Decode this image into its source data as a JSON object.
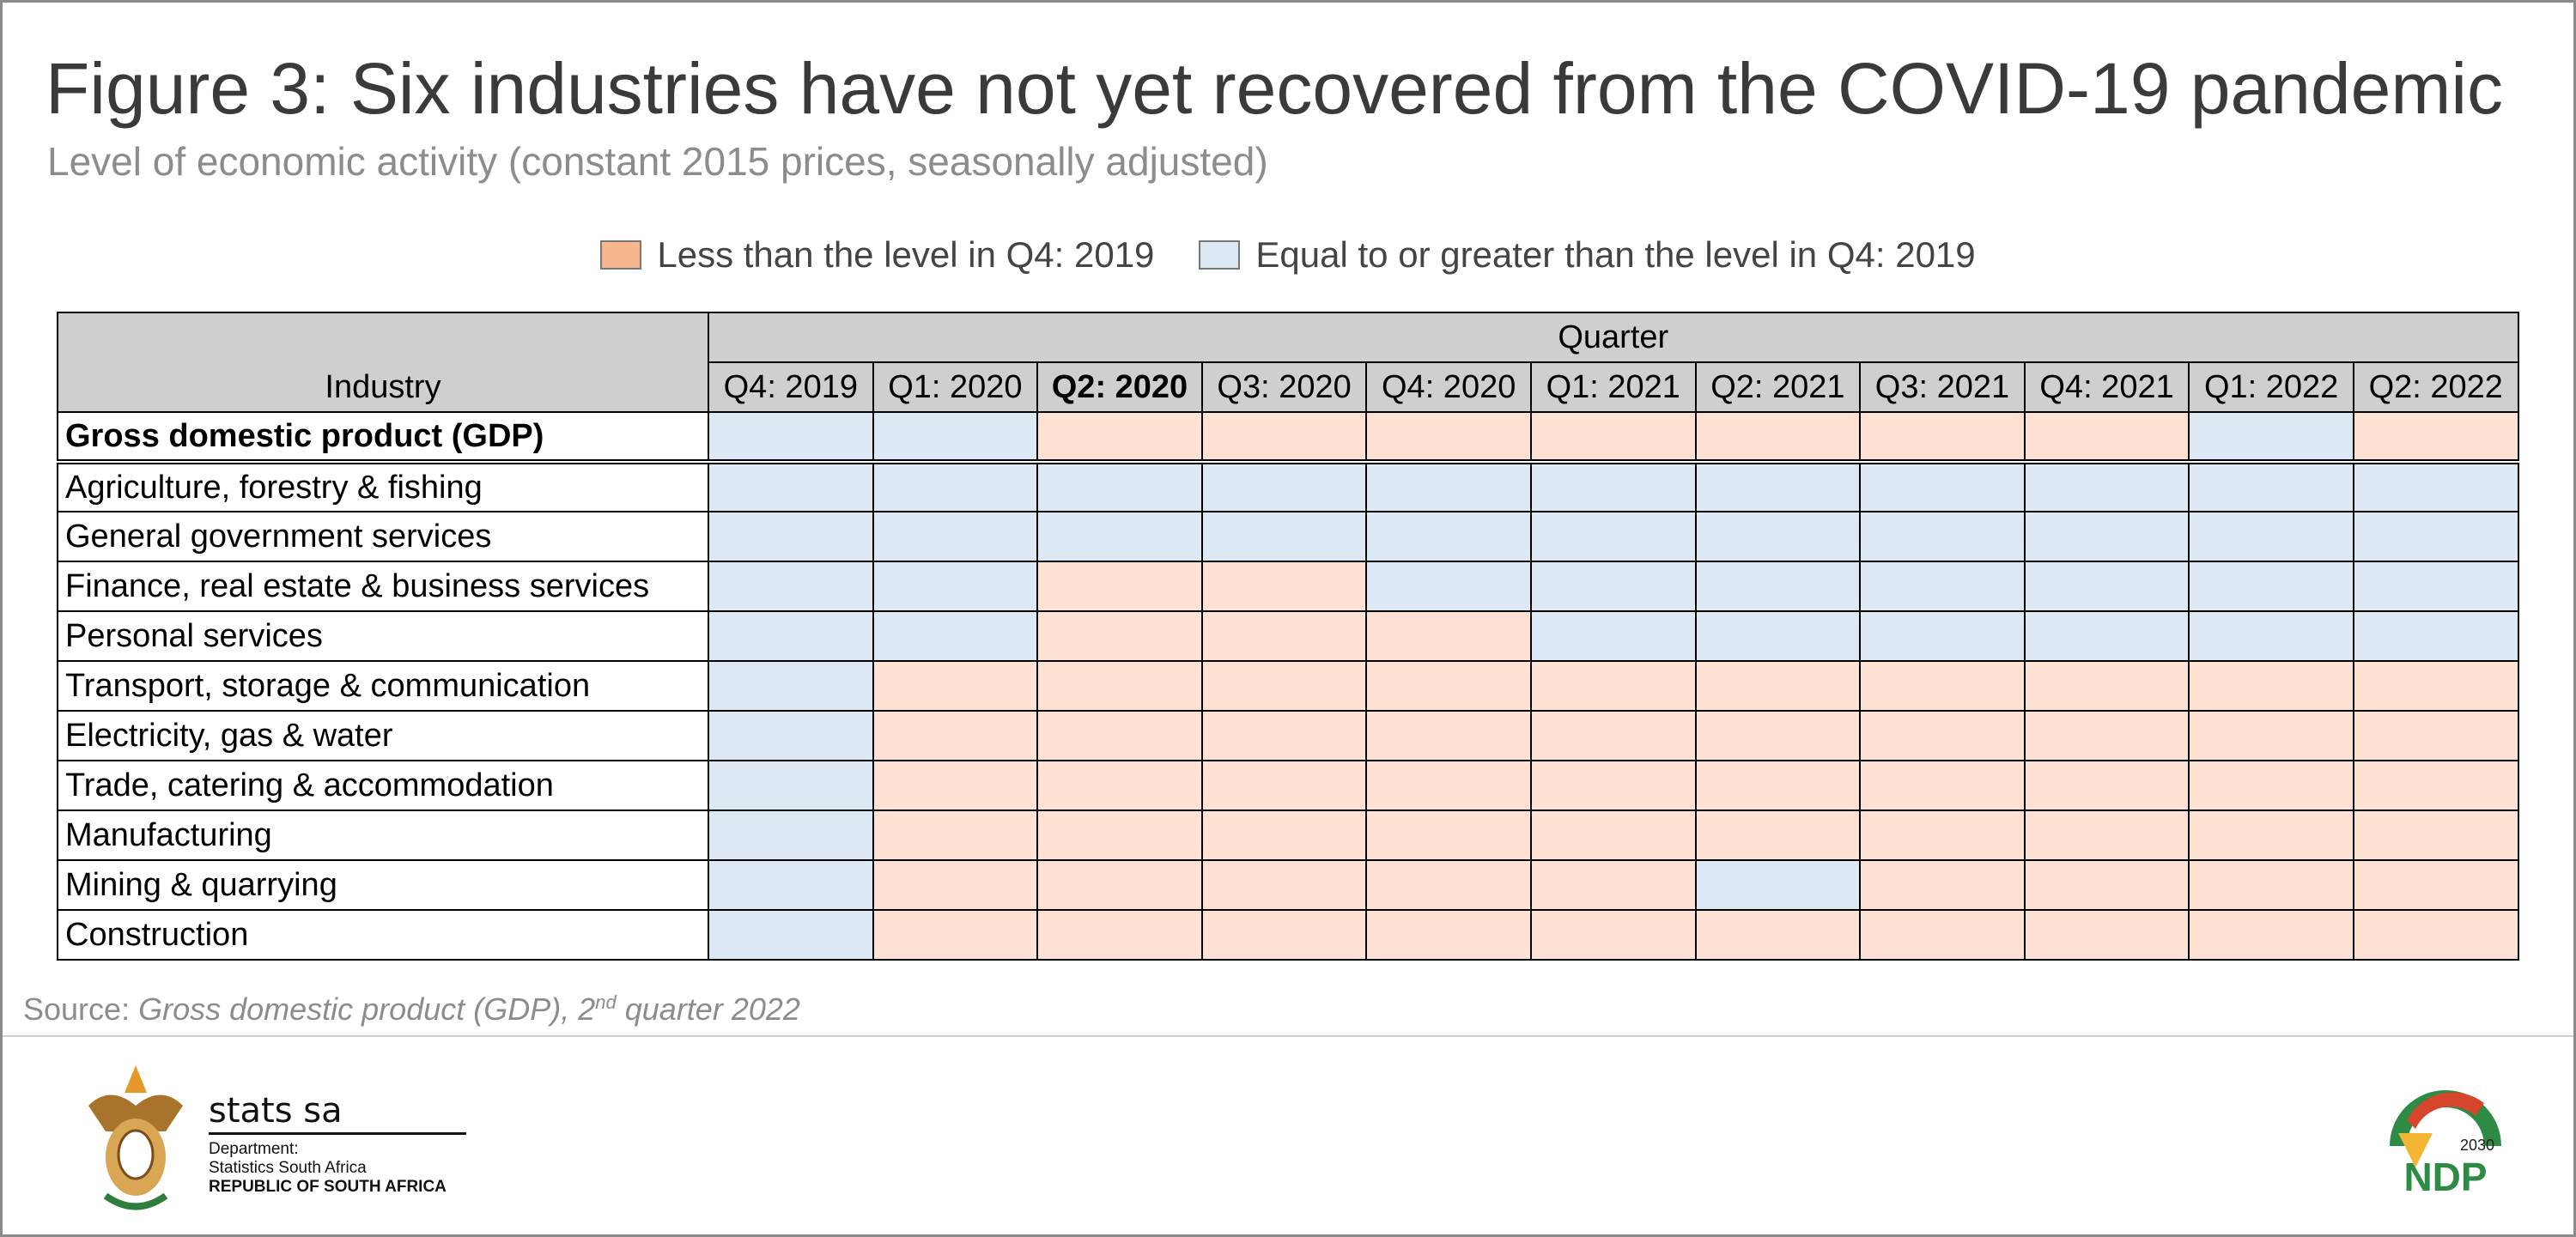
{
  "header": {
    "title": "Figure 3: Six industries have not yet recovered from the COVID-19 pandemic",
    "subtitle": "Level of economic activity (constant 2015 prices, seasonally adjusted)"
  },
  "legend": [
    {
      "label": "Less than the level in Q4: 2019",
      "color": "#f7b68d"
    },
    {
      "label": "Equal to or greater than the level in Q4: 2019",
      "color": "#dce9f5"
    }
  ],
  "table": {
    "row_header": "Industry",
    "column_group": "Quarter",
    "quarters": [
      "Q4: 2019",
      "Q1: 2020",
      "Q2: 2020",
      "Q3: 2020",
      "Q4: 2020",
      "Q1: 2021",
      "Q2: 2021",
      "Q3: 2021",
      "Q4: 2021",
      "Q1: 2022",
      "Q2: 2022"
    ],
    "bold_quarter": 2,
    "rows": [
      {
        "name": "Gross domestic product (GDP)",
        "bold": true,
        "cells": [
          "#dce9f5",
          "#dce9f5",
          "#fde2d3",
          "#fde2d3",
          "#fde2d3",
          "#fde2d3",
          "#fde2d3",
          "#fde2d3",
          "#fde2d3",
          "#dce9f5",
          "#fde2d3"
        ]
      },
      {
        "name": "Agriculture, forestry & fishing",
        "cells": [
          "#dce9f5",
          "#dce9f5",
          "#dce9f5",
          "#dce9f5",
          "#dce9f5",
          "#dce9f5",
          "#dce9f5",
          "#dce9f5",
          "#dce9f5",
          "#dce9f5",
          "#dce9f5"
        ]
      },
      {
        "name": "General government services",
        "cells": [
          "#dce9f5",
          "#dce9f5",
          "#dce9f5",
          "#dce9f5",
          "#dce9f5",
          "#dce9f5",
          "#dce9f5",
          "#dce9f5",
          "#dce9f5",
          "#dce9f5",
          "#dce9f5"
        ]
      },
      {
        "name": "Finance, real estate & business services",
        "cells": [
          "#dce9f5",
          "#dce9f5",
          "#fde2d3",
          "#fde2d3",
          "#dce9f5",
          "#dce9f5",
          "#dce9f5",
          "#dce9f5",
          "#dce9f5",
          "#dce9f5",
          "#dce9f5"
        ]
      },
      {
        "name": "Personal services",
        "cells": [
          "#dce9f5",
          "#dce9f5",
          "#fde2d3",
          "#fde2d3",
          "#fde2d3",
          "#dce9f5",
          "#dce9f5",
          "#dce9f5",
          "#dce9f5",
          "#dce9f5",
          "#dce9f5"
        ]
      },
      {
        "name": "Transport, storage & communication",
        "cells": [
          "#dce9f5",
          "#fde2d3",
          "#fde2d3",
          "#fde2d3",
          "#fde2d3",
          "#fde2d3",
          "#fde2d3",
          "#fde2d3",
          "#fde2d3",
          "#fde2d3",
          "#fde2d3"
        ]
      },
      {
        "name": "Electricity, gas & water",
        "cells": [
          "#dce9f5",
          "#fde2d3",
          "#fde2d3",
          "#fde2d3",
          "#fde2d3",
          "#fde2d3",
          "#fde2d3",
          "#fde2d3",
          "#fde2d3",
          "#fde2d3",
          "#fde2d3"
        ]
      },
      {
        "name": "Trade, catering & accommodation",
        "cells": [
          "#dce9f5",
          "#fde2d3",
          "#fde2d3",
          "#fde2d3",
          "#fde2d3",
          "#fde2d3",
          "#fde2d3",
          "#fde2d3",
          "#fde2d3",
          "#fde2d3",
          "#fde2d3"
        ]
      },
      {
        "name": "Manufacturing",
        "cells": [
          "#dce9f5",
          "#fde2d3",
          "#fde2d3",
          "#fde2d3",
          "#fde2d3",
          "#fde2d3",
          "#fde2d3",
          "#fde2d3",
          "#fde2d3",
          "#fde2d3",
          "#fde2d3"
        ]
      },
      {
        "name": "Mining & quarrying",
        "cells": [
          "#dce9f5",
          "#fde2d3",
          "#fde2d3",
          "#fde2d3",
          "#fde2d3",
          "#fde2d3",
          "#dce9f5",
          "#fde2d3",
          "#fde2d3",
          "#fde2d3",
          "#fde2d3"
        ]
      },
      {
        "name": "Construction",
        "cells": [
          "#dce9f5",
          "#fde2d3",
          "#fde2d3",
          "#fde2d3",
          "#fde2d3",
          "#fde2d3",
          "#fde2d3",
          "#fde2d3",
          "#fde2d3",
          "#fde2d3",
          "#fde2d3"
        ]
      }
    ]
  },
  "source": {
    "label": "Source:",
    "text": "Gross domestic product (GDP), 2",
    "superscript": "nd",
    "suffix": " quarter 2022"
  },
  "footer": {
    "brand": "stats sa",
    "department": "Department:",
    "agency": "Statistics South Africa",
    "country": "REPUBLIC OF SOUTH AFRICA",
    "ndp_year": "2030",
    "ndp": "NDP"
  }
}
